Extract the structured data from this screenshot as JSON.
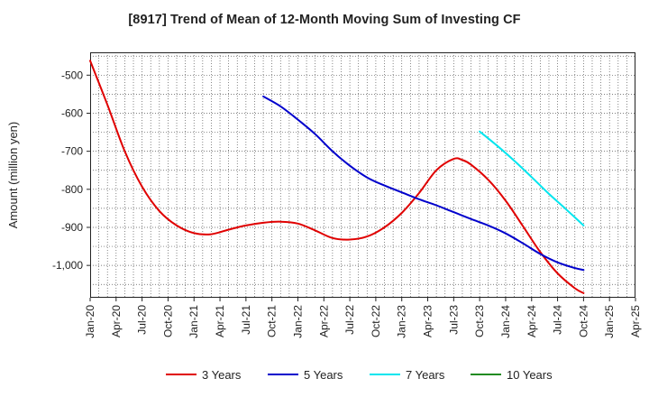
{
  "chart_data": {
    "type": "line",
    "title": "[8917]  Trend of Mean of 12-Month Moving Sum of Investing CF",
    "xlabel": "",
    "ylabel": "Amount (million yen)",
    "ylim": [
      -1085,
      -440
    ],
    "yticks": [
      -500,
      -600,
      -700,
      -800,
      -900,
      -1000
    ],
    "ytick_labels": [
      "-500",
      "-600",
      "-700",
      "-800",
      "-900",
      "-1,000"
    ],
    "x_start": "Jan-20",
    "x_end": "Apr-25",
    "x_ticks": [
      "Jan-20",
      "Apr-20",
      "Jul-20",
      "Oct-20",
      "Jan-21",
      "Apr-21",
      "Jul-21",
      "Oct-21",
      "Jan-22",
      "Apr-22",
      "Jul-22",
      "Oct-22",
      "Jan-23",
      "Apr-23",
      "Jul-23",
      "Oct-23",
      "Jan-24",
      "Apr-24",
      "Jul-24",
      "Oct-24",
      "Jan-25",
      "Apr-25"
    ],
    "grid": true,
    "legend_position": "bottom",
    "series": [
      {
        "name": "3 Years",
        "color": "#e00000",
        "points": [
          [
            "Jan-20",
            -462
          ],
          [
            "Mar-20",
            -578
          ],
          [
            "May-20",
            -700
          ],
          [
            "Jul-20",
            -793
          ],
          [
            "Sep-20",
            -857
          ],
          [
            "Nov-20",
            -895
          ],
          [
            "Jan-21",
            -915
          ],
          [
            "Mar-21",
            -918
          ],
          [
            "May-21",
            -906
          ],
          [
            "Jul-21",
            -895
          ],
          [
            "Sep-21",
            -888
          ],
          [
            "Nov-21",
            -885
          ],
          [
            "Jan-22",
            -890
          ],
          [
            "Mar-22",
            -908
          ],
          [
            "May-22",
            -928
          ],
          [
            "Jul-22",
            -932
          ],
          [
            "Sep-22",
            -924
          ],
          [
            "Nov-22",
            -900
          ],
          [
            "Jan-23",
            -862
          ],
          [
            "Mar-23",
            -810
          ],
          [
            "May-23",
            -750
          ],
          [
            "Jul-23",
            -720
          ],
          [
            "Aug-23",
            -723
          ],
          [
            "Sep-23",
            -735
          ],
          [
            "Nov-23",
            -775
          ],
          [
            "Jan-24",
            -830
          ],
          [
            "Mar-24",
            -897
          ],
          [
            "May-24",
            -965
          ],
          [
            "Jul-24",
            -1021
          ],
          [
            "Sep-24",
            -1060
          ],
          [
            "Oct-24",
            -1073
          ]
        ]
      },
      {
        "name": "5 Years",
        "color": "#0000cc",
        "points": [
          [
            "Sep-21",
            -556
          ],
          [
            "Nov-21",
            -582
          ],
          [
            "Jan-22",
            -617
          ],
          [
            "Mar-22",
            -655
          ],
          [
            "May-22",
            -700
          ],
          [
            "Jul-22",
            -738
          ],
          [
            "Sep-22",
            -769
          ],
          [
            "Nov-22",
            -790
          ],
          [
            "Jan-23",
            -808
          ],
          [
            "Mar-23",
            -826
          ],
          [
            "May-23",
            -842
          ],
          [
            "Jul-23",
            -860
          ],
          [
            "Sep-23",
            -878
          ],
          [
            "Nov-23",
            -895
          ],
          [
            "Jan-24",
            -916
          ],
          [
            "Mar-24",
            -942
          ],
          [
            "May-24",
            -970
          ],
          [
            "Jul-24",
            -992
          ],
          [
            "Sep-24",
            -1007
          ],
          [
            "Oct-24",
            -1012
          ]
        ]
      },
      {
        "name": "7 Years",
        "color": "#00e5ee",
        "points": [
          [
            "Oct-23",
            -648
          ],
          [
            "Dec-23",
            -685
          ],
          [
            "Feb-24",
            -725
          ],
          [
            "Apr-24",
            -768
          ],
          [
            "Jun-24",
            -812
          ],
          [
            "Aug-24",
            -853
          ],
          [
            "Oct-24",
            -895
          ]
        ]
      },
      {
        "name": "10 Years",
        "color": "#228b22",
        "points": []
      }
    ]
  }
}
